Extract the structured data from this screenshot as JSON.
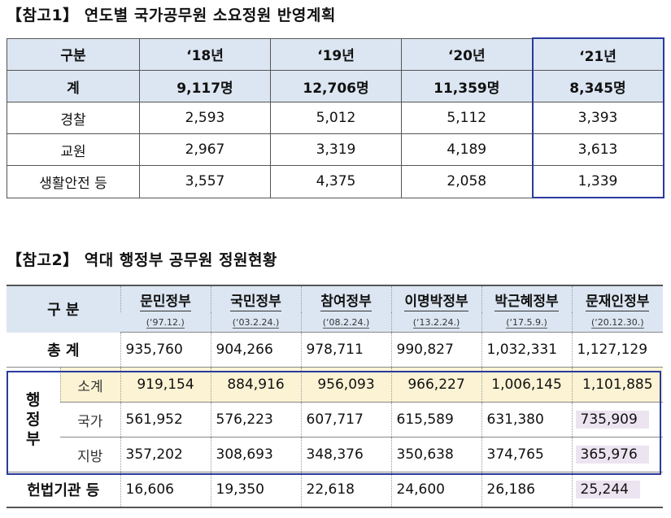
{
  "ref1": {
    "title": "【참고1】 연도별 국가공무원 소요정원 반영계획",
    "headers": [
      "구분",
      "‘18년",
      "‘19년",
      "‘20년",
      "‘21년"
    ],
    "rows": [
      {
        "label": "계",
        "values": [
          "9,117명",
          "12,706명",
          "11,359명",
          "8,345명"
        ]
      },
      {
        "label": "경찰",
        "values": [
          "2,593",
          "5,012",
          "5,112",
          "3,393"
        ]
      },
      {
        "label": "교원",
        "values": [
          "2,967",
          "3,319",
          "4,189",
          "3,613"
        ]
      },
      {
        "label": "생활안전 등",
        "values": [
          "3,557",
          "4,375",
          "2,058",
          "1,339"
        ]
      }
    ]
  },
  "ref2": {
    "title": "【참고2】 역대 행정부 공무원 정원현황",
    "corner_label": "구 분",
    "governments": [
      {
        "name": "문민정부",
        "date": "(‘97.12.)"
      },
      {
        "name": "국민정부",
        "date": "(‘03.2.24.)"
      },
      {
        "name": "참여정부",
        "date": "(‘08.2.24.)"
      },
      {
        "name": "이명박정부",
        "date": "(‘13.2.24.)"
      },
      {
        "name": "박근혜정부",
        "date": "(‘17.5.9.)"
      },
      {
        "name": "문재인정부",
        "date": "(‘20.12.30.)"
      }
    ],
    "total": {
      "label": "총 계",
      "values": [
        "935,760",
        "904,266",
        "978,711",
        "990,827",
        "1,032,331",
        "1,127,129"
      ]
    },
    "executive_label": "행정부",
    "subtotal": {
      "label": "소계",
      "values": [
        "919,154",
        "884,916",
        "956,093",
        "966,227",
        "1,006,145",
        "1,101,885"
      ]
    },
    "national": {
      "label": "국가",
      "values": [
        "561,952",
        "576,223",
        "607,717",
        "615,589",
        "631,380",
        "735,909"
      ]
    },
    "local": {
      "label": "지방",
      "values": [
        "357,202",
        "308,693",
        "348,376",
        "350,638",
        "374,765",
        "365,976"
      ]
    },
    "constitutional": {
      "label": "헌법기관 등",
      "values": [
        "16,606",
        "19,350",
        "22,618",
        "24,600",
        "26,186",
        "25,244"
      ]
    }
  }
}
